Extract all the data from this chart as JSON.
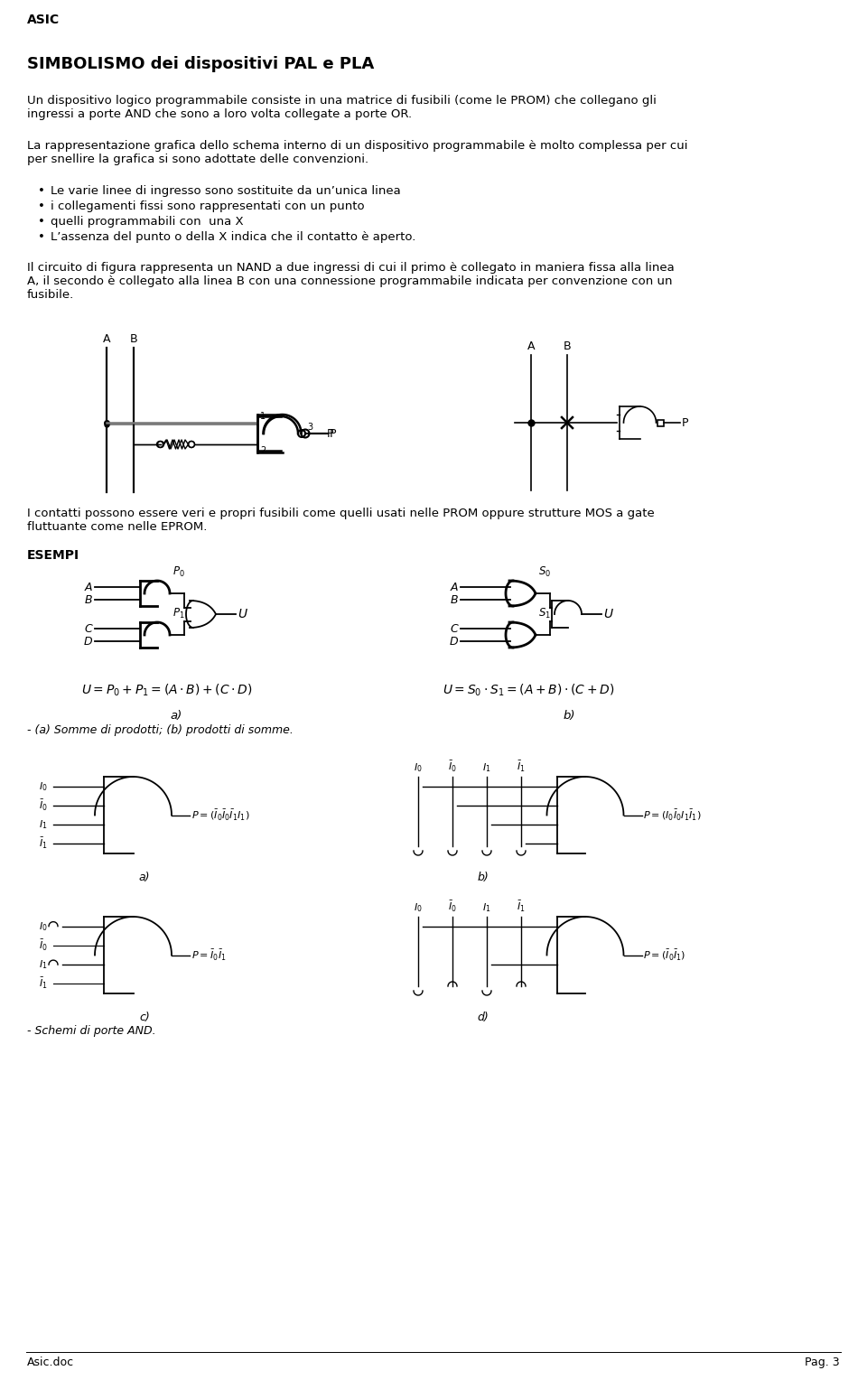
{
  "title": "SIMBOLISMO dei dispositivi PAL e PLA",
  "header": "ASIC",
  "footer_left": "Asic.doc",
  "footer_right": "Pag. 3",
  "bg_color": "#ffffff",
  "body_text1": "Un dispositivo logico programmabile consiste in una matrice di fusibili (come le PROM) che collegano gli\ningressi a porte AND che sono a loro volta collegate a porte OR.",
  "body_text2": "La rappresentazione grafica dello schema interno di un dispositivo programmabile è molto complessa per cui\nper snellire la grafica si sono adottate delle convenzioni.",
  "bullets": [
    "Le varie linee di ingresso sono sostituite da un’unica linea",
    "i collegamenti fissi sono rappresentati con un punto",
    "quelli programmabili con  una X",
    "L’assenza del punto o della X indica che il contatto è aperto."
  ],
  "body_text3": "Il circuito di figura rappresenta un NAND a due ingressi di cui il primo è collegato in maniera fissa alla linea\nA, il secondo è collegato alla linea B con una connessione programmabile indicata per convenzione con un\nfusibile.",
  "body_text4": "I contatti possono essere veri e propri fusibili come quelli usati nelle PROM oppure strutture MOS a gate\nfluttuante come nelle EPROM.",
  "esempi_title": "ESEMPI",
  "caption_esempi": "- (a) Somme di prodotti; (b) prodotti di somme.",
  "schemata_caption": "- Schemi di porte AND."
}
